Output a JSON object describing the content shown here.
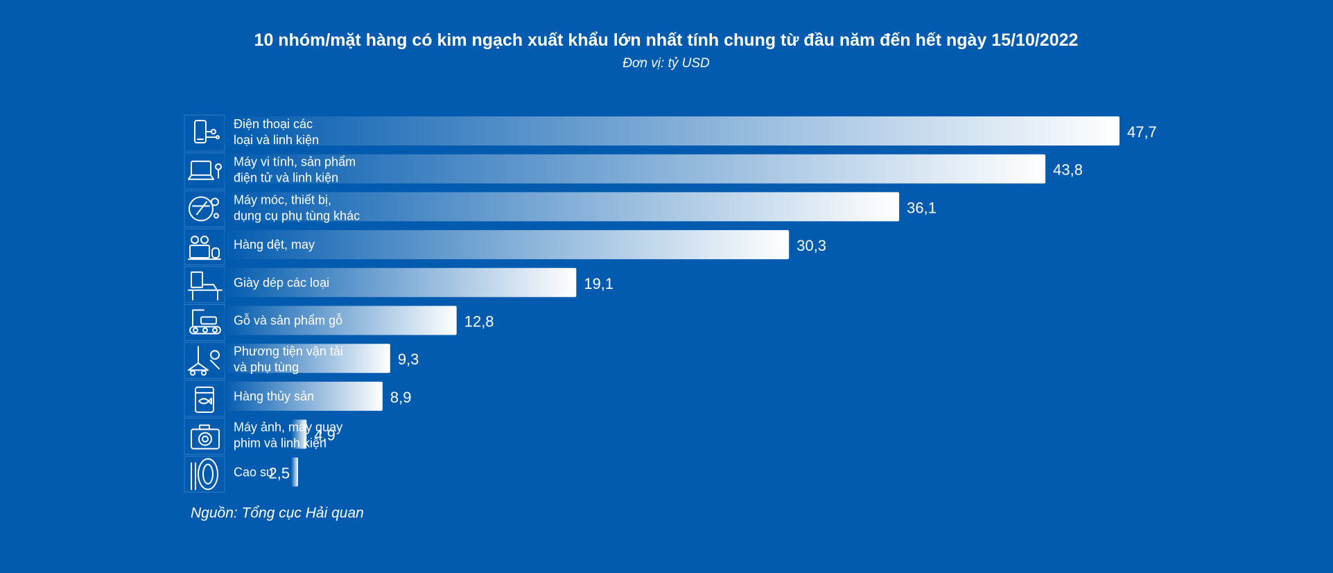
{
  "chart_data": {
    "type": "bar",
    "orientation": "horizontal",
    "title": "10 nhóm/mặt hàng có kim ngạch xuất khẩu lớn nhất tính chung từ đầu năm đến hết ngày 15/10/2022",
    "subtitle": "Đơn vị: tỷ USD",
    "source": "Nguồn: Tổng cục Hải quan",
    "categories": [
      [
        "Điện thoại các",
        "loại và linh kiện"
      ],
      [
        "Máy vi tính, sản phẩm",
        "điện tử và linh kiện"
      ],
      [
        "Máy móc, thiết bị,",
        "dụng cụ phụ tùng khác"
      ],
      [
        "Hàng dệt, may"
      ],
      [
        "Giày dép các loại"
      ],
      [
        "Gỗ và sản phẩm gỗ"
      ],
      [
        "Phương tiện vận tải",
        "và phụ tùng"
      ],
      [
        "Hàng thủy sản"
      ],
      [
        "Máy ảnh, máy quay",
        "phim và linh kiện"
      ],
      [
        "Cao su"
      ]
    ],
    "values": [
      47.7,
      43.8,
      36.1,
      30.3,
      19.1,
      12.8,
      9.3,
      8.9,
      4.9,
      2.5
    ],
    "value_labels": [
      "47,7",
      "43,8",
      "36,1",
      "30,3",
      "19,1",
      "12,8",
      "9,3",
      "8,9",
      "4,9",
      "2,5"
    ],
    "icons": [
      "phone-icon",
      "laptop-icon",
      "machinery-icon",
      "sewing-machine-icon",
      "shoe-machine-icon",
      "wood-conveyor-icon",
      "crane-icon",
      "fish-can-icon",
      "camera-icon",
      "tire-icon"
    ],
    "colors": {
      "background": "#035BAF",
      "bar_start": "#035BAF",
      "bar_end": "#FFFFFF",
      "text": "#FFFFFF"
    },
    "grid": false,
    "legend": "none"
  }
}
